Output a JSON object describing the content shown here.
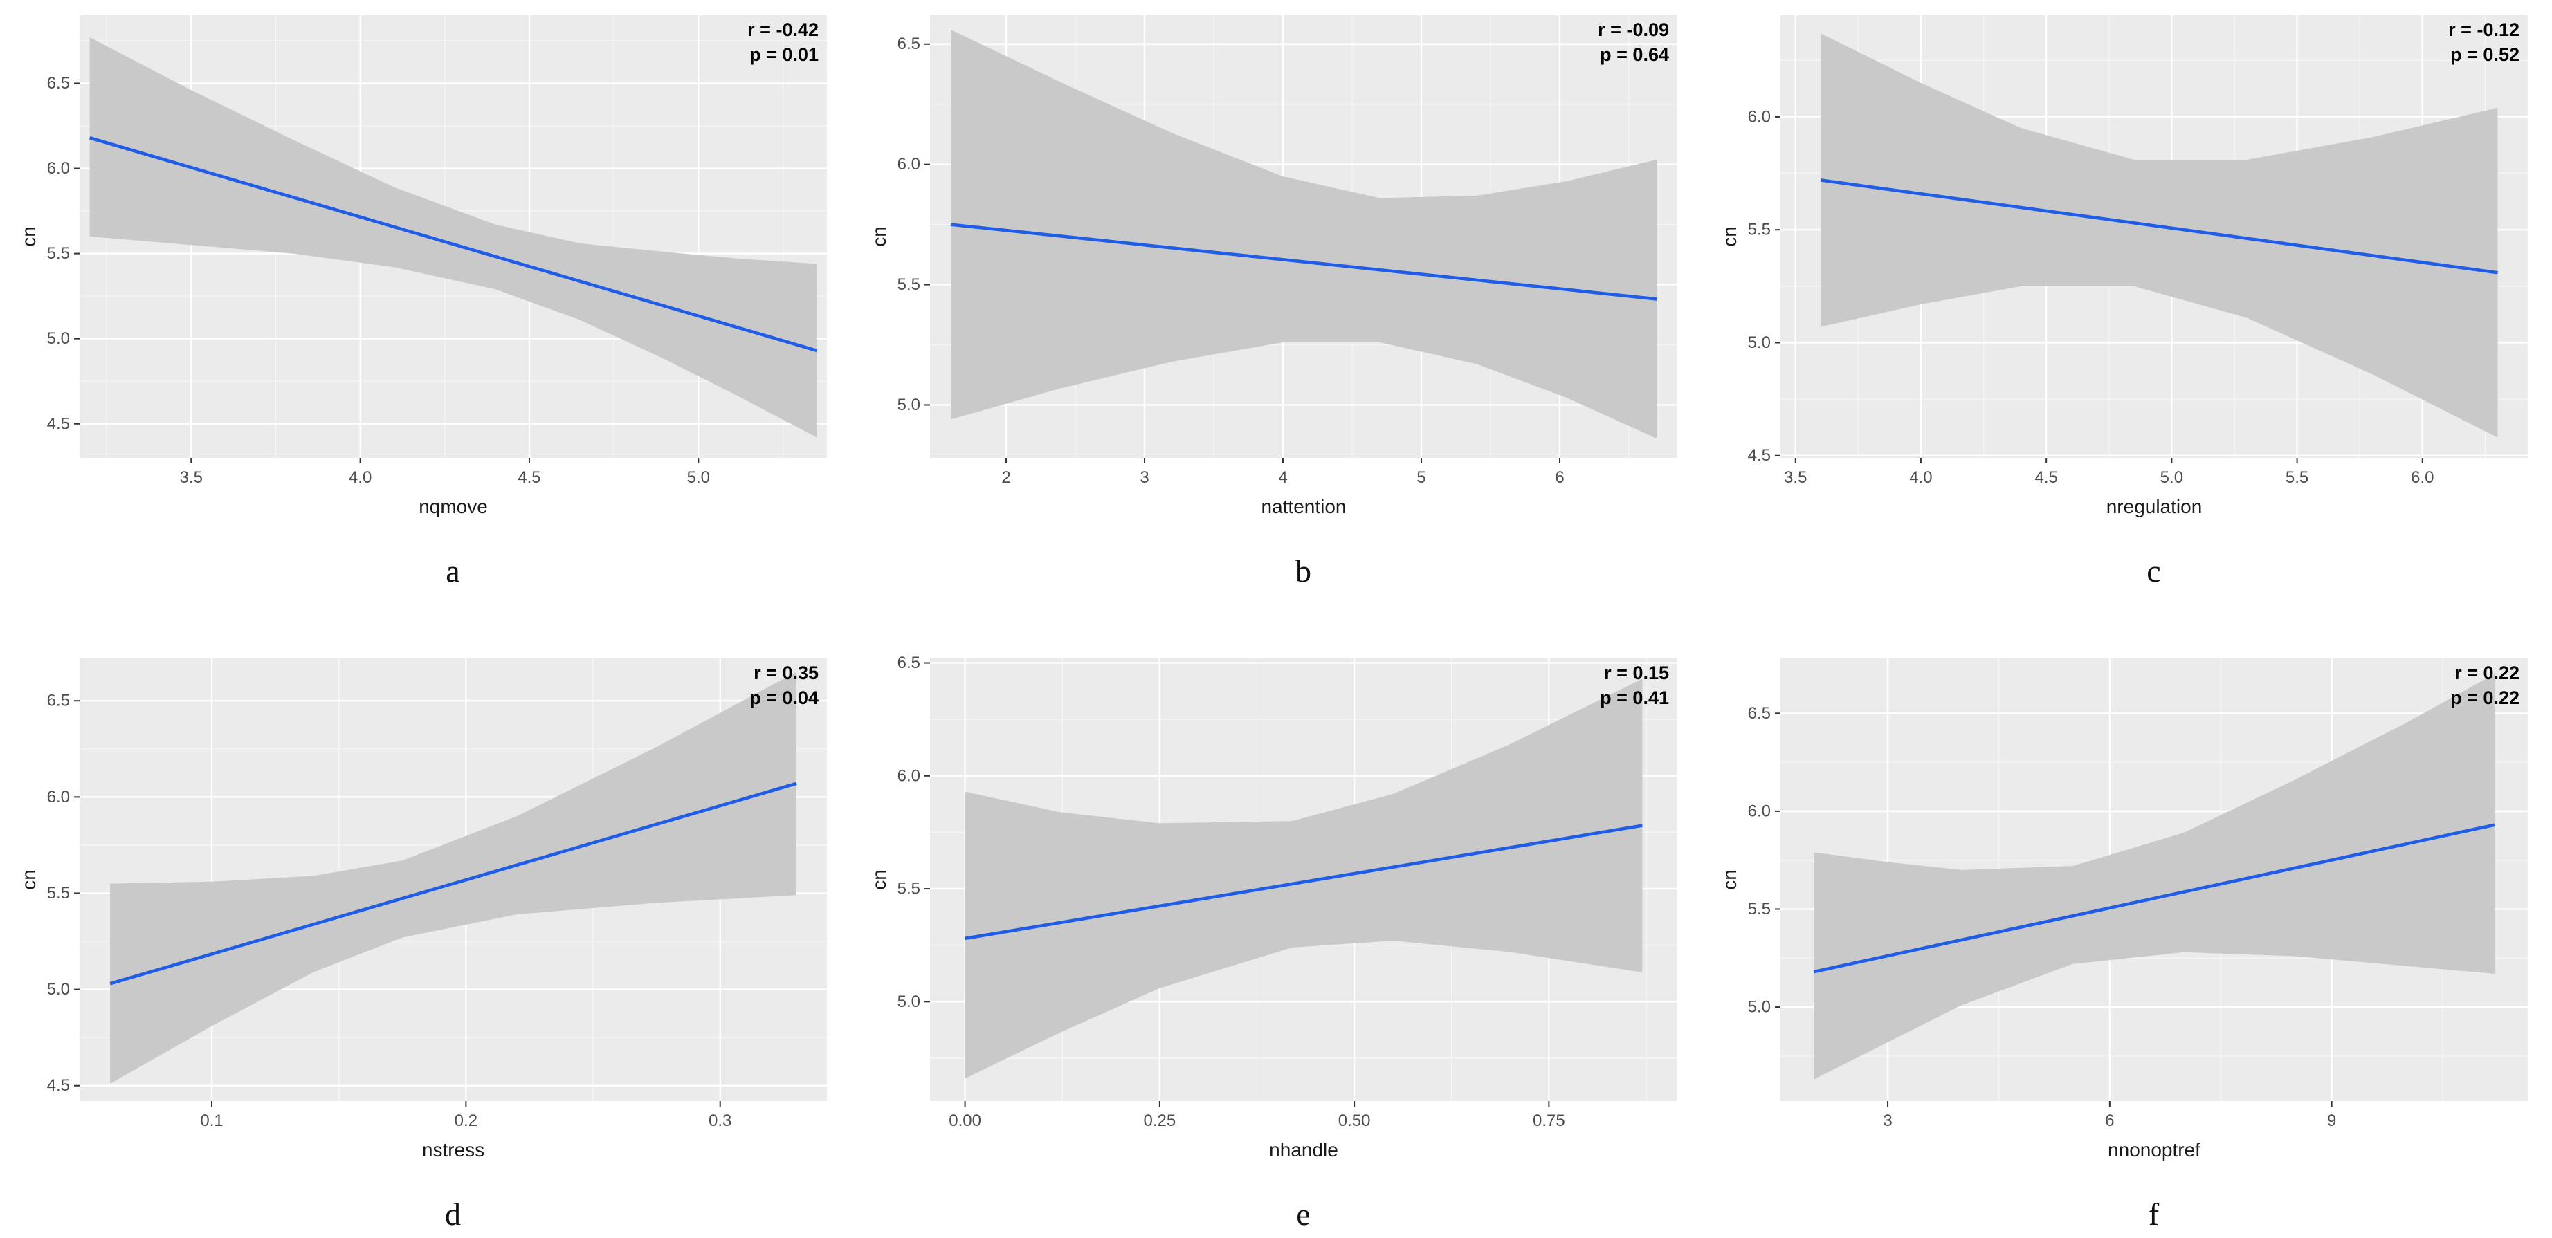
{
  "figure": {
    "background": "#ffffff",
    "description_visible_text_only": "Six ggplot-style linear regression plots with confidence bands, labeled a-f"
  },
  "style": {
    "panel_bg": "#ebebeb",
    "grid_major": "#ffffff",
    "grid_minor": "#ffffff",
    "band_color": "#c9c9c9",
    "line_color": "#1f5ce8",
    "tick_text_color": "#4d4d4d",
    "axis_title_color": "#1a1a1a",
    "annotation_color": "#000000",
    "tick_mark_color": "#333333"
  },
  "chart_data": [
    {
      "type": "line",
      "panel_label": "a",
      "xlabel": "nqmove",
      "ylabel": "cn",
      "annotation": {
        "lines": [
          "r = -0.42",
          "p = 0.01"
        ]
      },
      "xlim": [
        3.17,
        5.38
      ],
      "ylim": [
        4.3,
        6.9
      ],
      "x_tick_values": [
        3.5,
        4.0,
        4.5,
        5.0
      ],
      "x_tick_labels": [
        "3.5",
        "4.0",
        "4.5",
        "5.0"
      ],
      "y_tick_values": [
        4.5,
        5.0,
        5.5,
        6.0,
        6.5
      ],
      "y_tick_labels": [
        "4.5",
        "5.0",
        "5.5",
        "6.0",
        "6.5"
      ],
      "regression_line": {
        "x": [
          3.2,
          5.35
        ],
        "y": [
          6.18,
          4.93
        ]
      },
      "confidence_band": {
        "x": [
          3.2,
          3.5,
          3.8,
          4.1,
          4.4,
          4.65,
          4.9,
          5.12,
          5.35
        ],
        "upper": [
          6.77,
          6.46,
          6.17,
          5.89,
          5.67,
          5.56,
          5.51,
          5.47,
          5.44
        ],
        "lower": [
          5.6,
          5.55,
          5.5,
          5.42,
          5.29,
          5.11,
          4.88,
          4.66,
          4.42
        ]
      }
    },
    {
      "type": "line",
      "panel_label": "b",
      "xlabel": "nattention",
      "ylabel": "cn",
      "annotation": {
        "lines": [
          "r = -0.09",
          "p = 0.64"
        ]
      },
      "xlim": [
        1.45,
        6.85
      ],
      "ylim": [
        4.78,
        6.62
      ],
      "x_tick_values": [
        2,
        3,
        4,
        5,
        6
      ],
      "x_tick_labels": [
        "2",
        "3",
        "4",
        "5",
        "6"
      ],
      "y_tick_values": [
        5.0,
        5.5,
        6.0,
        6.5
      ],
      "y_tick_labels": [
        "5.0",
        "5.5",
        "6.0",
        "6.5"
      ],
      "regression_line": {
        "x": [
          1.6,
          6.7
        ],
        "y": [
          5.75,
          5.44
        ]
      },
      "confidence_band": {
        "x": [
          1.6,
          2.4,
          3.2,
          4.0,
          4.7,
          5.4,
          6.05,
          6.7
        ],
        "upper": [
          6.56,
          6.34,
          6.13,
          5.95,
          5.86,
          5.87,
          5.93,
          6.02
        ],
        "lower": [
          4.94,
          5.07,
          5.18,
          5.26,
          5.26,
          5.17,
          5.03,
          4.86
        ]
      }
    },
    {
      "type": "line",
      "panel_label": "c",
      "xlabel": "nregulation",
      "ylabel": "cn",
      "annotation": {
        "lines": [
          "r = -0.12",
          "p = 0.52"
        ]
      },
      "xlim": [
        3.44,
        6.42
      ],
      "ylim": [
        4.49,
        6.45
      ],
      "x_tick_values": [
        3.5,
        4.0,
        4.5,
        5.0,
        5.5,
        6.0
      ],
      "x_tick_labels": [
        "3.5",
        "4.0",
        "4.5",
        "5.0",
        "5.5",
        "6.0"
      ],
      "y_tick_values": [
        4.5,
        5.0,
        5.5,
        6.0
      ],
      "y_tick_labels": [
        "4.5",
        "5.0",
        "5.5",
        "6.0"
      ],
      "regression_line": {
        "x": [
          3.6,
          6.3
        ],
        "y": [
          5.72,
          5.31
        ]
      },
      "confidence_band": {
        "x": [
          3.6,
          4.0,
          4.4,
          4.85,
          5.3,
          5.8,
          6.3
        ],
        "upper": [
          6.37,
          6.15,
          5.95,
          5.81,
          5.81,
          5.91,
          6.04
        ],
        "lower": [
          5.07,
          5.17,
          5.25,
          5.25,
          5.11,
          4.86,
          4.58
        ]
      }
    },
    {
      "type": "line",
      "panel_label": "d",
      "xlabel": "nstress",
      "ylabel": "cn",
      "annotation": {
        "lines": [
          "r = 0.35",
          "p = 0.04"
        ]
      },
      "xlim": [
        0.048,
        0.342
      ],
      "ylim": [
        4.42,
        6.72
      ],
      "x_tick_values": [
        0.1,
        0.2,
        0.3
      ],
      "x_tick_labels": [
        "0.1",
        "0.2",
        "0.3"
      ],
      "y_tick_values": [
        4.5,
        5.0,
        5.5,
        6.0,
        6.5
      ],
      "y_tick_labels": [
        "4.5",
        "5.0",
        "5.5",
        "6.0",
        "6.5"
      ],
      "regression_line": {
        "x": [
          0.06,
          0.33
        ],
        "y": [
          5.03,
          6.07
        ]
      },
      "confidence_band": {
        "x": [
          0.06,
          0.1,
          0.14,
          0.175,
          0.22,
          0.275,
          0.33
        ],
        "upper": [
          5.55,
          5.56,
          5.59,
          5.67,
          5.9,
          6.26,
          6.65
        ],
        "lower": [
          4.51,
          4.81,
          5.09,
          5.27,
          5.39,
          5.45,
          5.49
        ]
      }
    },
    {
      "type": "line",
      "panel_label": "e",
      "xlabel": "nhandle",
      "ylabel": "cn",
      "annotation": {
        "lines": [
          "r = 0.15",
          "p = 0.41"
        ]
      },
      "xlim": [
        -0.045,
        0.915
      ],
      "ylim": [
        4.56,
        6.52
      ],
      "x_tick_values": [
        0.0,
        0.25,
        0.5,
        0.75
      ],
      "x_tick_labels": [
        "0.00",
        "0.25",
        "0.50",
        "0.75"
      ],
      "y_tick_values": [
        5.0,
        5.5,
        6.0,
        6.5
      ],
      "y_tick_labels": [
        "5.0",
        "5.5",
        "6.0",
        "6.5"
      ],
      "regression_line": {
        "x": [
          0.0,
          0.87
        ],
        "y": [
          5.28,
          5.78
        ]
      },
      "confidence_band": {
        "x": [
          0.0,
          0.12,
          0.25,
          0.42,
          0.55,
          0.7,
          0.87
        ],
        "upper": [
          5.93,
          5.84,
          5.79,
          5.8,
          5.92,
          6.14,
          6.43
        ],
        "lower": [
          4.66,
          4.86,
          5.06,
          5.24,
          5.27,
          5.22,
          5.13
        ]
      }
    },
    {
      "type": "line",
      "panel_label": "f",
      "xlabel": "nnonoptref",
      "ylabel": "cn",
      "annotation": {
        "lines": [
          "r = 0.22",
          "p = 0.22"
        ]
      },
      "xlim": [
        1.55,
        11.65
      ],
      "ylim": [
        4.52,
        6.78
      ],
      "x_tick_values": [
        3,
        6,
        9
      ],
      "x_tick_labels": [
        "3",
        "6",
        "9"
      ],
      "y_tick_values": [
        5.0,
        5.5,
        6.0,
        6.5
      ],
      "y_tick_labels": [
        "5.0",
        "5.5",
        "6.0",
        "6.5"
      ],
      "regression_line": {
        "x": [
          2.0,
          11.2
        ],
        "y": [
          5.18,
          5.93
        ]
      },
      "confidence_band": {
        "x": [
          2.0,
          3.0,
          4.0,
          5.5,
          7.0,
          8.5,
          10.0,
          11.2
        ],
        "upper": [
          5.79,
          5.74,
          5.7,
          5.72,
          5.89,
          6.16,
          6.45,
          6.7
        ],
        "lower": [
          4.63,
          4.82,
          5.01,
          5.22,
          5.28,
          5.26,
          5.21,
          5.17
        ]
      }
    }
  ]
}
